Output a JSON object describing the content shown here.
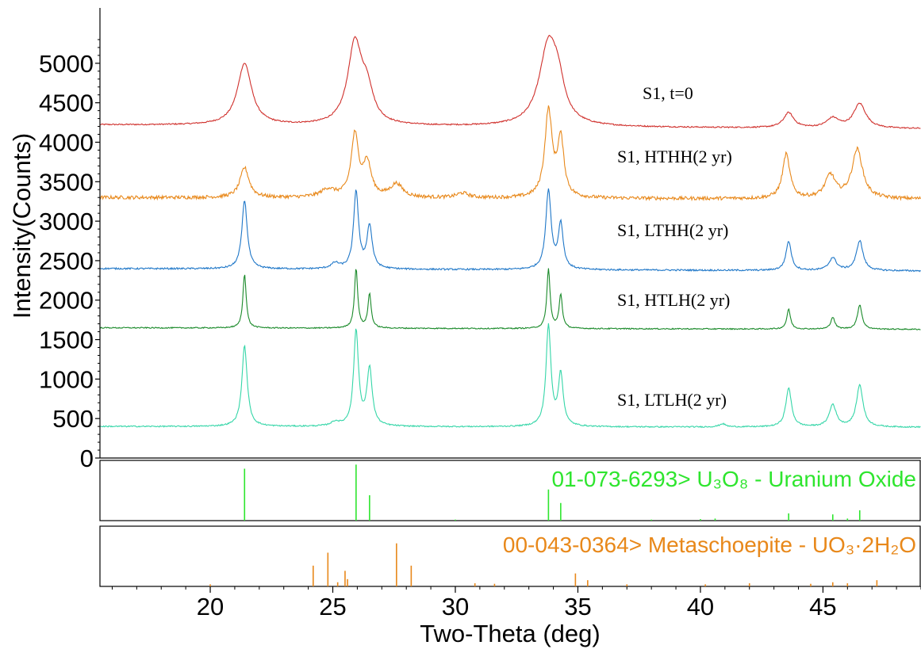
{
  "chart_data": {
    "type": "line",
    "xlabel": "Two-Theta (deg)",
    "ylabel": "Intensity(Counts)",
    "xlim": [
      15.5,
      49
    ],
    "ylim": [
      0,
      5400
    ],
    "x_ticks": [
      "20",
      "25",
      "30",
      "35",
      "40",
      "45"
    ],
    "y_ticks": [
      "0",
      "500",
      "1000",
      "1500",
      "2000",
      "2500",
      "3000",
      "3500",
      "4000",
      "4500",
      "5000"
    ],
    "series": [
      {
        "name": "S1, t=0",
        "color": "#d0312d",
        "baseline": 4220,
        "baseline_end": 4170,
        "noise": 8,
        "peaks": [
          [
            21.4,
            780,
            0.35
          ],
          [
            25.9,
            1020,
            0.35
          ],
          [
            26.4,
            370,
            0.3
          ],
          [
            33.8,
            1020,
            0.45
          ],
          [
            34.2,
            340,
            0.3
          ],
          [
            43.6,
            190,
            0.25
          ],
          [
            45.4,
            120,
            0.3
          ],
          [
            46.5,
            310,
            0.3
          ]
        ]
      },
      {
        "name": "S1, HTHH(2 yr)",
        "color": "#e8881a",
        "baseline": 3300,
        "baseline_end": 3280,
        "noise": 22,
        "peaks": [
          [
            21.4,
            380,
            0.22
          ],
          [
            24.8,
            100,
            0.35
          ],
          [
            25.9,
            780,
            0.18
          ],
          [
            26.4,
            420,
            0.2
          ],
          [
            27.6,
            170,
            0.3
          ],
          [
            30.3,
            60,
            0.3
          ],
          [
            33.8,
            1090,
            0.18
          ],
          [
            34.3,
            720,
            0.16
          ],
          [
            43.5,
            560,
            0.18
          ],
          [
            45.3,
            290,
            0.25
          ],
          [
            46.4,
            620,
            0.26
          ]
        ]
      },
      {
        "name": "S1, LTHH(2 yr)",
        "color": "#1f77c8",
        "baseline": 2400,
        "baseline_end": 2370,
        "noise": 10,
        "peaks": [
          [
            21.4,
            870,
            0.13
          ],
          [
            25.1,
            70,
            0.2
          ],
          [
            25.95,
            980,
            0.12
          ],
          [
            26.5,
            540,
            0.13
          ],
          [
            33.8,
            1000,
            0.13
          ],
          [
            34.3,
            570,
            0.12
          ],
          [
            43.6,
            370,
            0.13
          ],
          [
            45.4,
            160,
            0.18
          ],
          [
            46.5,
            380,
            0.16
          ]
        ]
      },
      {
        "name": "S1, HTLH(2 yr)",
        "color": "#1a8a2a",
        "baseline": 1650,
        "baseline_end": 1630,
        "noise": 7,
        "peaks": [
          [
            21.4,
            690,
            0.08
          ],
          [
            25.95,
            750,
            0.08
          ],
          [
            26.5,
            430,
            0.08
          ],
          [
            33.8,
            750,
            0.08
          ],
          [
            34.3,
            430,
            0.08
          ],
          [
            43.6,
            250,
            0.09
          ],
          [
            45.4,
            150,
            0.1
          ],
          [
            46.5,
            310,
            0.11
          ]
        ]
      },
      {
        "name": "S1, LTLH(2 yr)",
        "color": "#35d6a8",
        "baseline": 400,
        "baseline_end": 390,
        "noise": 8,
        "peaks": [
          [
            21.4,
            1020,
            0.13
          ],
          [
            25.1,
            50,
            0.2
          ],
          [
            25.95,
            1200,
            0.12
          ],
          [
            26.5,
            720,
            0.13
          ],
          [
            33.8,
            1270,
            0.12
          ],
          [
            34.3,
            650,
            0.12
          ],
          [
            40.9,
            40,
            0.15
          ],
          [
            43.6,
            490,
            0.14
          ],
          [
            45.4,
            280,
            0.17
          ],
          [
            46.5,
            530,
            0.16
          ]
        ]
      }
    ],
    "reference_panels": [
      {
        "label": "01-073-6293> U₃O₈ - Uranium Oxide",
        "color": "#2ee52e",
        "sticks": [
          [
            21.4,
            100
          ],
          [
            25.95,
            108
          ],
          [
            26.5,
            49
          ],
          [
            33.8,
            60
          ],
          [
            34.3,
            34
          ],
          [
            43.6,
            14
          ],
          [
            45.4,
            12
          ],
          [
            46.0,
            4
          ],
          [
            46.5,
            20
          ],
          [
            30.0,
            2
          ],
          [
            38.0,
            2
          ],
          [
            40.0,
            3
          ],
          [
            40.6,
            4
          ]
        ]
      },
      {
        "label": "00-043-0364> Metaschoepite - UO₃·2H₂O",
        "color": "#e8881a",
        "sticks": [
          [
            20.0,
            4
          ],
          [
            24.2,
            40
          ],
          [
            24.8,
            65
          ],
          [
            25.2,
            8
          ],
          [
            25.5,
            30
          ],
          [
            25.6,
            14
          ],
          [
            27.6,
            83
          ],
          [
            28.2,
            40
          ],
          [
            30.8,
            6
          ],
          [
            31.6,
            5
          ],
          [
            34.9,
            25
          ],
          [
            35.4,
            12
          ],
          [
            37.0,
            4
          ],
          [
            40.2,
            4
          ],
          [
            42.0,
            6
          ],
          [
            44.5,
            5
          ],
          [
            45.4,
            8
          ],
          [
            46.0,
            6
          ],
          [
            47.2,
            12
          ]
        ]
      }
    ]
  }
}
